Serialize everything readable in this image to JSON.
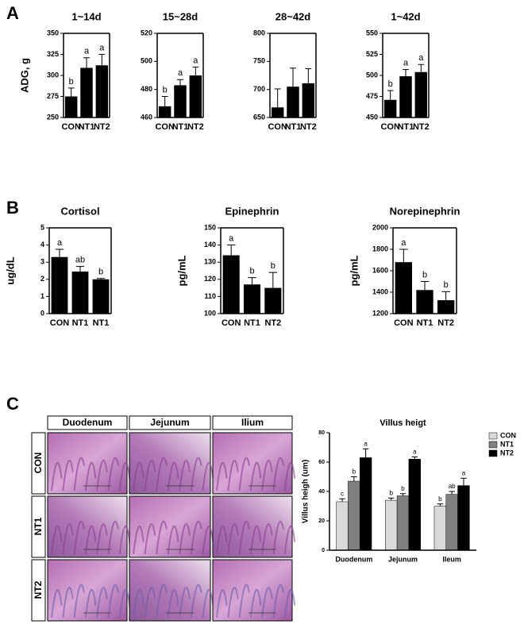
{
  "panel_labels": [
    "A",
    "B",
    "C"
  ],
  "histology": {
    "columns": [
      "Duodenum",
      "Jejunum",
      "Ilium"
    ],
    "rows": [
      "CON",
      "NT1",
      "NT2"
    ]
  },
  "chart_data": [
    {
      "type": "bar",
      "title": "1~14d",
      "ylabel": "ADG, g",
      "categories": [
        "CON",
        "NT1",
        "NT2"
      ],
      "values": [
        275,
        309,
        312
      ],
      "errors": [
        10,
        12,
        13
      ],
      "annotations": [
        "b",
        "a",
        "a"
      ],
      "color": "#000000",
      "ylim": [
        250,
        350
      ],
      "yticks": [
        250,
        275,
        300,
        325,
        350
      ]
    },
    {
      "type": "bar",
      "title": "15~28d",
      "categories": [
        "CON",
        "NT1",
        "NT2"
      ],
      "values": [
        468,
        483,
        490
      ],
      "errors": [
        7,
        4,
        6
      ],
      "annotations": [
        "b",
        "a",
        "a"
      ],
      "color": "#000000",
      "ylim": [
        460,
        520
      ],
      "yticks": [
        460,
        480,
        500,
        520
      ]
    },
    {
      "type": "bar",
      "title": "28~42d",
      "categories": [
        "CON",
        "NT1",
        "NT2"
      ],
      "values": [
        668,
        705,
        711
      ],
      "errors": [
        33,
        33,
        26
      ],
      "color": "#000000",
      "ylim": [
        650,
        800
      ],
      "yticks": [
        650,
        700,
        750,
        800
      ]
    },
    {
      "type": "bar",
      "title": "1~42d",
      "categories": [
        "CON",
        "NT1",
        "NT2"
      ],
      "values": [
        471,
        499,
        504
      ],
      "errors": [
        11,
        8,
        9
      ],
      "annotations": [
        "b",
        "a",
        "a"
      ],
      "color": "#000000",
      "ylim": [
        450,
        550
      ],
      "yticks": [
        450,
        475,
        500,
        525,
        550
      ]
    },
    {
      "type": "bar",
      "title": "Cortisol",
      "ylabel": "ug/dL",
      "categories": [
        "CON",
        "NT1",
        "NT1"
      ],
      "values": [
        3.3,
        2.45,
        2.0
      ],
      "errors": [
        0.45,
        0.3,
        0.05
      ],
      "annotations": [
        "a",
        "ab",
        "b"
      ],
      "color": "#000000",
      "ylim": [
        0,
        5
      ],
      "yticks": [
        0,
        1,
        2,
        3,
        4,
        5
      ]
    },
    {
      "type": "bar",
      "title": "Epinephrin",
      "ylabel": "pg/mL",
      "categories": [
        "CON",
        "NT1",
        "NT2"
      ],
      "values": [
        134,
        117,
        115
      ],
      "errors": [
        6,
        4,
        9
      ],
      "annotations": [
        "a",
        "b",
        "b"
      ],
      "color": "#000000",
      "ylim": [
        100,
        150
      ],
      "yticks": [
        100,
        110,
        120,
        130,
        140,
        150
      ]
    },
    {
      "type": "bar",
      "title": "Norepinephrin",
      "ylabel": "pg/mL",
      "categories": [
        "CON",
        "NT1",
        "NT2"
      ],
      "values": [
        1680,
        1420,
        1325
      ],
      "errors": [
        120,
        80,
        80
      ],
      "annotations": [
        "a",
        "b",
        "b"
      ],
      "color": "#000000",
      "ylim": [
        1200,
        2000
      ],
      "yticks": [
        1200,
        1400,
        1600,
        1800,
        2000
      ]
    },
    {
      "type": "grouped_bar",
      "title": "Villus heigt",
      "ylabel": "Villus heigh (um)",
      "categories": [
        "Duodenum",
        "Jejunum",
        "Ileum"
      ],
      "ylim": [
        0,
        80
      ],
      "yticks": [
        0,
        20,
        40,
        60,
        80
      ],
      "legend": "top-right",
      "series": [
        {
          "name": "CON",
          "color": "#d9d9d9",
          "values": [
            33,
            34,
            30
          ],
          "errors": [
            2,
            1.5,
            1.5
          ],
          "annotations": [
            "c",
            "b",
            "b"
          ]
        },
        {
          "name": "NT1",
          "color": "#808080",
          "values": [
            47,
            37,
            38
          ],
          "errors": [
            3,
            1.5,
            2
          ],
          "annotations": [
            "b",
            "b",
            "ab"
          ]
        },
        {
          "name": "NT2",
          "color": "#000000",
          "values": [
            63,
            62,
            44
          ],
          "errors": [
            6,
            1.5,
            5
          ],
          "annotations": [
            "a",
            "a",
            "a"
          ]
        }
      ]
    }
  ]
}
